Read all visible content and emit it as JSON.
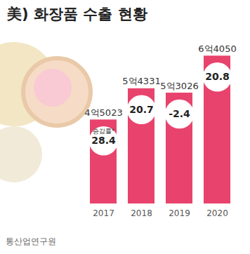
{
  "chart_data": {
    "type": "bar",
    "title": "美) 화장품 수출 현황",
    "categories": [
      "2017",
      "2018",
      "2019",
      "2020"
    ],
    "values": [
      45023,
      54331,
      53026,
      64050
    ],
    "value_labels": [
      "4억5023",
      "5억4331",
      "5억3026",
      "6억4050"
    ],
    "color": "#e8436c",
    "ylim": [
      20000,
      66000
    ],
    "tick_labels": "x",
    "data_labels": true,
    "growth": {
      "name": "증감률*",
      "values": [
        28.4,
        20.7,
        -2.4,
        20.8
      ]
    },
    "source": "통산업연구원"
  }
}
